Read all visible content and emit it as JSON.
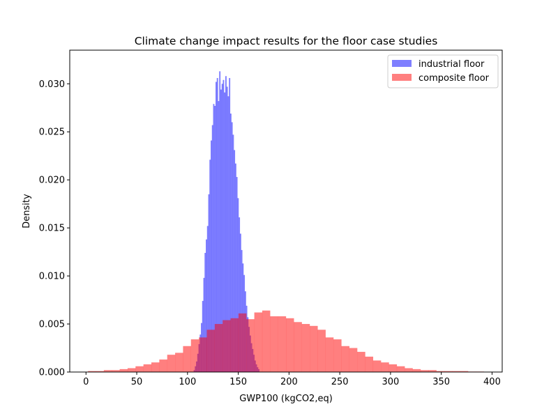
{
  "chart_data": {
    "type": "histogram",
    "title": "Climate change impact results for the floor case studies",
    "xlabel": "GWP100 (kgCO2,eq)",
    "ylabel": "Density",
    "xlim": [
      -16,
      410
    ],
    "ylim": [
      0,
      0.0335
    ],
    "x_ticks": [
      0,
      50,
      100,
      150,
      200,
      250,
      300,
      350,
      400
    ],
    "x_tick_labels": [
      "0",
      "50",
      "100",
      "150",
      "200",
      "250",
      "300",
      "350",
      "400"
    ],
    "y_ticks": [
      0.0,
      0.005,
      0.01,
      0.015,
      0.02,
      0.025,
      0.03
    ],
    "y_tick_labels": [
      "0.000",
      "0.005",
      "0.010",
      "0.015",
      "0.020",
      "0.025",
      "0.030"
    ],
    "legend_position": "top-right",
    "grid": false,
    "series": [
      {
        "name": "industrial floor",
        "color": "#0000ff",
        "alpha": 0.5,
        "bin_start": 106,
        "bin_width": 1.2,
        "values": [
          0.0002,
          0.0006,
          0.0011,
          0.0019,
          0.0029,
          0.0039,
          0.0051,
          0.0074,
          0.0098,
          0.0124,
          0.0138,
          0.0152,
          0.0185,
          0.0221,
          0.0241,
          0.0257,
          0.0279,
          0.0277,
          0.0302,
          0.0306,
          0.0282,
          0.0313,
          0.0294,
          0.03,
          0.0304,
          0.0291,
          0.0308,
          0.0297,
          0.0287,
          0.0306,
          0.0269,
          0.026,
          0.0247,
          0.0231,
          0.0217,
          0.0203,
          0.0181,
          0.0161,
          0.0144,
          0.0127,
          0.0113,
          0.0101,
          0.0084,
          0.0069,
          0.0057,
          0.0047,
          0.0038,
          0.003,
          0.0024,
          0.0018,
          0.0012,
          0.0008,
          0.0005,
          0.0003
        ]
      },
      {
        "name": "composite floor",
        "color": "#ff0000",
        "alpha": 0.5,
        "bin_start": 2,
        "bin_width": 7.8,
        "values": [
          0.0001,
          0.0001,
          0.0002,
          0.0002,
          0.0003,
          0.0004,
          0.0006,
          0.0008,
          0.001,
          0.0013,
          0.0018,
          0.002,
          0.0027,
          0.0034,
          0.0036,
          0.0044,
          0.005,
          0.0054,
          0.0056,
          0.0061,
          0.0055,
          0.0062,
          0.0064,
          0.0058,
          0.0058,
          0.0056,
          0.0052,
          0.005,
          0.0048,
          0.0044,
          0.0036,
          0.0034,
          0.0027,
          0.0025,
          0.0021,
          0.0016,
          0.0012,
          0.001,
          0.0008,
          0.0006,
          0.0004,
          0.0003,
          0.0002,
          0.0002,
          0.0001,
          0.0001,
          0.0001,
          0.0001,
          5e-05,
          5e-05
        ]
      }
    ]
  }
}
